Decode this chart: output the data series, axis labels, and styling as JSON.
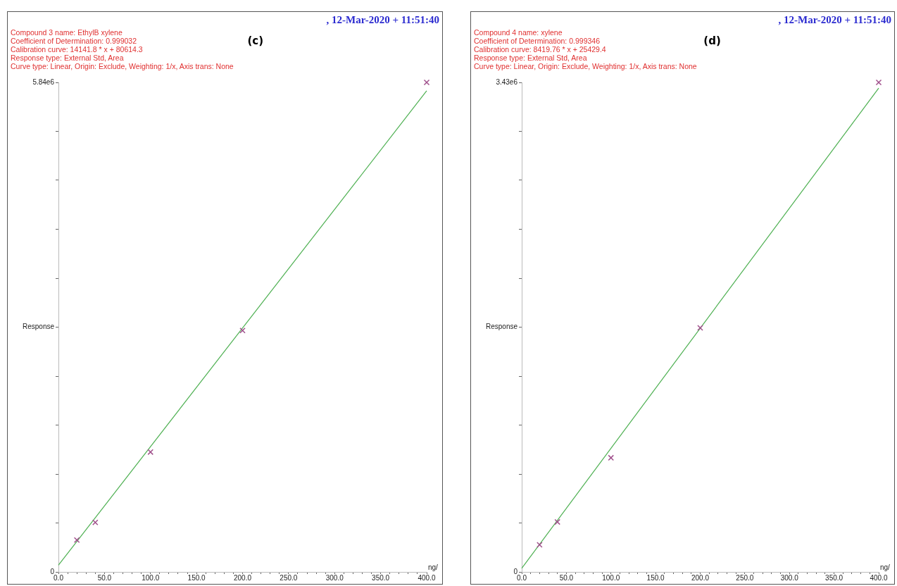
{
  "chart_data": [
    {
      "type": "scatter",
      "title": "(c)",
      "annotations": [
        "Compound 3 name: EthylB xylene",
        "Coefficient of Determination: 0.999032",
        "Calibration curve: 14141.8 * x + 80614.3",
        "Response type: External Std, Area",
        "Curve type: Linear, Origin: Exclude, Weighting: 1/x, Axis trans: None",
        ", 12-Mar-2020 + 11:51:40"
      ],
      "xlabel": "ng/",
      "ylabel": "Response",
      "grid": false,
      "xlim": [
        0,
        400
      ],
      "ylim": [
        0,
        5840000
      ],
      "xticks": [
        {
          "value": 0,
          "label": "0.0"
        },
        {
          "value": 10,
          "label": null
        },
        {
          "value": 20,
          "label": null
        },
        {
          "value": 30,
          "label": null
        },
        {
          "value": 40,
          "label": null
        },
        {
          "value": 50,
          "label": "50.0"
        },
        {
          "value": 60,
          "label": null
        },
        {
          "value": 70,
          "label": null
        },
        {
          "value": 80,
          "label": null
        },
        {
          "value": 90,
          "label": null
        },
        {
          "value": 100,
          "label": "100.0"
        },
        {
          "value": 110,
          "label": null
        },
        {
          "value": 120,
          "label": null
        },
        {
          "value": 130,
          "label": null
        },
        {
          "value": 140,
          "label": null
        },
        {
          "value": 150,
          "label": "150.0"
        },
        {
          "value": 160,
          "label": null
        },
        {
          "value": 170,
          "label": null
        },
        {
          "value": 180,
          "label": null
        },
        {
          "value": 190,
          "label": null
        },
        {
          "value": 200,
          "label": "200.0"
        },
        {
          "value": 210,
          "label": null
        },
        {
          "value": 220,
          "label": null
        },
        {
          "value": 230,
          "label": null
        },
        {
          "value": 240,
          "label": null
        },
        {
          "value": 250,
          "label": "250.0"
        },
        {
          "value": 260,
          "label": null
        },
        {
          "value": 270,
          "label": null
        },
        {
          "value": 280,
          "label": null
        },
        {
          "value": 290,
          "label": null
        },
        {
          "value": 300,
          "label": "300.0"
        },
        {
          "value": 310,
          "label": null
        },
        {
          "value": 320,
          "label": null
        },
        {
          "value": 330,
          "label": null
        },
        {
          "value": 340,
          "label": null
        },
        {
          "value": 350,
          "label": "350.0"
        },
        {
          "value": 360,
          "label": null
        },
        {
          "value": 370,
          "label": null
        },
        {
          "value": 380,
          "label": null
        },
        {
          "value": 390,
          "label": null
        },
        {
          "value": 400,
          "label": "400.0"
        }
      ],
      "yticks": [
        0,
        {
          "value": 584000,
          "label": null
        },
        {
          "value": 1168000,
          "label": null
        },
        {
          "value": 1752000,
          "label": null
        },
        {
          "value": 2336000,
          "label": null
        },
        {
          "value": 2920000,
          "label": null
        },
        {
          "value": 3504000,
          "label": null
        },
        {
          "value": 4088000,
          "label": null
        },
        {
          "value": 4672000,
          "label": null
        },
        {
          "value": 5256000,
          "label": null
        },
        {
          "value": 5840000,
          "label": "5.84e6"
        }
      ],
      "series": [
        {
          "type": "line",
          "color": "#4caf50",
          "x": [
            0,
            400
          ],
          "values": [
            80000,
            5740000
          ],
          "marker": "none",
          "line_style": "solid"
        },
        {
          "type": "scatter",
          "color": "#a0508c",
          "x": [
            20,
            40,
            100,
            200,
            400
          ],
          "values": [
            380000,
            590000,
            1430000,
            2880000,
            5840000
          ],
          "marker": "cross"
        }
      ]
    },
    {
      "type": "scatter",
      "title": "(d)",
      "annotations": [
        "Compound 4 name: xylene",
        "Coefficient of Determination: 0.999346",
        "Calibration curve: 8419.76 * x + 25429.4",
        "Response type: External Std, Area",
        "Curve type: Linear, Origin: Exclude, Weighting: 1/x, Axis trans: None",
        ", 12-Mar-2020 + 11:51:40"
      ],
      "xlabel": "ng/",
      "ylabel": "Response",
      "grid": false,
      "xlim": [
        0,
        400
      ],
      "ylim": [
        0,
        3430000
      ],
      "xticks": [
        {
          "value": 0,
          "label": "0.0"
        },
        {
          "value": 10,
          "label": null
        },
        {
          "value": 20,
          "label": null
        },
        {
          "value": 30,
          "label": null
        },
        {
          "value": 40,
          "label": null
        },
        {
          "value": 50,
          "label": "50.0"
        },
        {
          "value": 60,
          "label": null
        },
        {
          "value": 70,
          "label": null
        },
        {
          "value": 80,
          "label": null
        },
        {
          "value": 90,
          "label": null
        },
        {
          "value": 100,
          "label": "100.0"
        },
        {
          "value": 110,
          "label": null
        },
        {
          "value": 120,
          "label": null
        },
        {
          "value": 130,
          "label": null
        },
        {
          "value": 140,
          "label": null
        },
        {
          "value": 150,
          "label": "150.0"
        },
        {
          "value": 160,
          "label": null
        },
        {
          "value": 170,
          "label": null
        },
        {
          "value": 180,
          "label": null
        },
        {
          "value": 190,
          "label": null
        },
        {
          "value": 200,
          "label": "200.0"
        },
        {
          "value": 210,
          "label": null
        },
        {
          "value": 220,
          "label": null
        },
        {
          "value": 230,
          "label": null
        },
        {
          "value": 240,
          "label": null
        },
        {
          "value": 250,
          "label": "250.0"
        },
        {
          "value": 260,
          "label": null
        },
        {
          "value": 270,
          "label": null
        },
        {
          "value": 280,
          "label": null
        },
        {
          "value": 290,
          "label": null
        },
        {
          "value": 300,
          "label": "300.0"
        },
        {
          "value": 310,
          "label": null
        },
        {
          "value": 320,
          "label": null
        },
        {
          "value": 330,
          "label": null
        },
        {
          "value": 340,
          "label": null
        },
        {
          "value": 350,
          "label": "350.0"
        },
        {
          "value": 360,
          "label": null
        },
        {
          "value": 370,
          "label": null
        },
        {
          "value": 380,
          "label": null
        },
        {
          "value": 390,
          "label": null
        },
        {
          "value": 400,
          "label": "400.0"
        }
      ],
      "yticks": [
        0,
        {
          "value": 343000,
          "label": null
        },
        {
          "value": 686000,
          "label": null
        },
        {
          "value": 1029000,
          "label": null
        },
        {
          "value": 1372000,
          "label": null
        },
        {
          "value": 1715000,
          "label": null
        },
        {
          "value": 2058000,
          "label": null
        },
        {
          "value": 2401000,
          "label": null
        },
        {
          "value": 2744000,
          "label": null
        },
        {
          "value": 3087000,
          "label": null
        },
        {
          "value": 3430000,
          "label": "3.43e6"
        }
      ],
      "series": [
        {
          "type": "line",
          "color": "#4caf50",
          "x": [
            0,
            400
          ],
          "values": [
            25000,
            3390000
          ],
          "marker": "none",
          "line_style": "solid"
        },
        {
          "type": "scatter",
          "color": "#a0508c",
          "x": [
            20,
            40,
            100,
            200,
            400
          ],
          "values": [
            190000,
            350000,
            800000,
            1710000,
            3430000
          ],
          "marker": "cross"
        }
      ]
    }
  ]
}
